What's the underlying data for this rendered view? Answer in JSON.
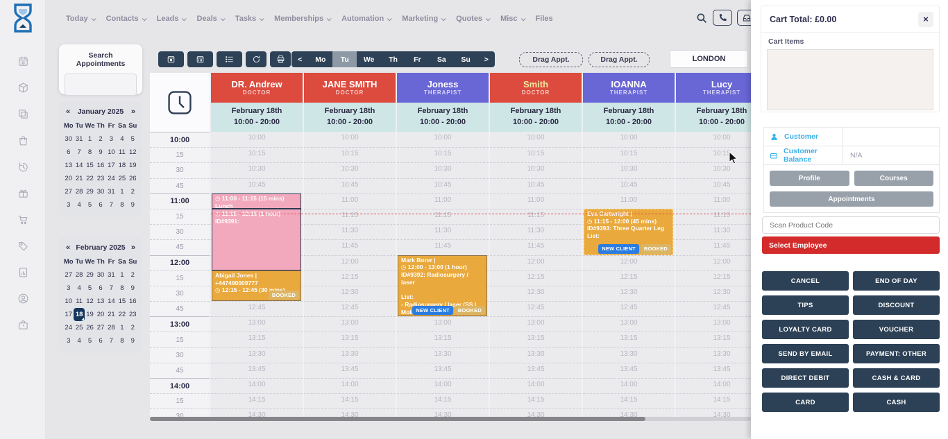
{
  "nav": {
    "items": [
      {
        "label": "Today",
        "dropdown": true
      },
      {
        "label": "Contacts",
        "dropdown": true
      },
      {
        "label": "Leads",
        "dropdown": true
      },
      {
        "label": "Deals",
        "dropdown": true
      },
      {
        "label": "Tasks",
        "dropdown": true
      },
      {
        "label": "Memberships",
        "dropdown": true
      },
      {
        "label": "Automation",
        "dropdown": true
      },
      {
        "label": "Marketing",
        "dropdown": true
      },
      {
        "label": "Quotes",
        "dropdown": true
      },
      {
        "label": "Misc",
        "dropdown": true
      },
      {
        "label": "Files",
        "dropdown": false
      }
    ],
    "right_icons": [
      "search",
      "phone",
      "inbox"
    ]
  },
  "sidebar": {
    "icons": [
      "calendar",
      "package",
      "copy",
      "shopping-bag",
      "history",
      "gift",
      "cart",
      "tag",
      "report",
      "user",
      "briefcase"
    ]
  },
  "left": {
    "search": {
      "label": "Search Appointments",
      "value": ""
    },
    "calendars": [
      {
        "prev": "«",
        "title": "January 2025",
        "next": "»",
        "day_names": [
          "Mo",
          "Tu",
          "We",
          "Th",
          "Fr",
          "Sa",
          "Su"
        ],
        "weeks": [
          [
            30,
            31,
            1,
            2,
            3,
            4,
            5
          ],
          [
            6,
            7,
            8,
            9,
            10,
            11,
            12
          ],
          [
            13,
            14,
            15,
            16,
            17,
            18,
            19
          ],
          [
            20,
            21,
            22,
            23,
            24,
            25,
            26
          ],
          [
            27,
            28,
            29,
            30,
            31,
            1,
            2
          ],
          [
            3,
            4,
            5,
            6,
            7,
            8,
            9
          ]
        ],
        "selected": null
      },
      {
        "prev": "«",
        "title": "February 2025",
        "next": "»",
        "day_names": [
          "Mo",
          "Tu",
          "We",
          "Th",
          "Fr",
          "Sa",
          "Su"
        ],
        "weeks": [
          [
            27,
            28,
            29,
            30,
            31,
            1,
            2
          ],
          [
            3,
            4,
            5,
            6,
            7,
            8,
            9
          ],
          [
            10,
            11,
            12,
            13,
            14,
            15,
            16
          ],
          [
            17,
            18,
            19,
            20,
            21,
            22,
            23
          ],
          [
            24,
            25,
            26,
            27,
            28,
            1,
            2
          ],
          [
            3,
            4,
            5,
            6,
            7,
            8,
            9
          ]
        ],
        "selected": {
          "week": 3,
          "day": 1,
          "value": 18
        }
      }
    ]
  },
  "toolbar": {
    "icon_buttons": [
      "calendar-day",
      "calendar-week",
      "agenda-list",
      "refresh",
      "print"
    ],
    "week_nav": {
      "prev": "<",
      "days": [
        "Mo",
        "Tu",
        "We",
        "Th",
        "Fr",
        "Sa",
        "Su"
      ],
      "active": "Tu",
      "next": ">"
    },
    "drag_buttons": [
      "Drag Appt.",
      "Drag Appt."
    ],
    "location": "LONDON"
  },
  "schedule": {
    "date_line1": "February 18th",
    "date_line2": "10:00 - 20:00",
    "staff": [
      {
        "name": "DR. Andrew",
        "role": "DOCTOR",
        "color": "red"
      },
      {
        "name": "JANE SMITH",
        "role": "DOCTOR",
        "color": "red"
      },
      {
        "name": "Joness",
        "role": "THERAPIST",
        "color": "purple"
      },
      {
        "name": "Smith",
        "role": "DOCTOR",
        "color": "red",
        "name_color": "#f0e9a0"
      },
      {
        "name": "IOANNA",
        "role": "THERAPIST",
        "color": "purple"
      },
      {
        "name": "Lucy",
        "role": "THERAPIST",
        "color": "purple"
      }
    ],
    "times": [
      "10:00",
      "10:15",
      "10:30",
      "10:45",
      "11:00",
      "11:15",
      "11:30",
      "11:45",
      "12:00",
      "12:15",
      "12:30",
      "12:45",
      "13:00",
      "13:15",
      "13:30",
      "13:45",
      "14:00",
      "14:15",
      "14:30"
    ],
    "open_time": "10:00",
    "now_line": "11:20",
    "appointments": [
      {
        "staff": 0,
        "start": "11:00",
        "end": "11:15",
        "color": "pink",
        "lines": [
          "◷ 11:00 - 11:15 (15 mins)",
          "Lunch"
        ],
        "badges": []
      },
      {
        "staff": 0,
        "start": "11:15",
        "end": "12:15",
        "color": "pink",
        "lines": [
          "◷ 11:15 - 12:15 (1 hour)",
          "ID#9391:"
        ],
        "badges": []
      },
      {
        "staff": 0,
        "start": "12:15",
        "end": "12:45",
        "color": "orange",
        "lines": [
          "Abigail Jones |",
          "+447490009777",
          "◷ 12:15 - 12:45 (30 mins)"
        ],
        "badges": [
          "BOOKED"
        ]
      },
      {
        "staff": 2,
        "start": "12:00",
        "end": "13:00",
        "color": "orange",
        "lines": [
          "Mark Borer |",
          "◷ 12:00 - 13:00 (1 hour)",
          "ID#9392: Radiosurgery / laser",
          "",
          "List:",
          "- Radiosurgery / laser (SS | Mole Removal)"
        ],
        "badges": [
          "NEW CLIENT",
          "BOOKED"
        ]
      },
      {
        "staff": 4,
        "start": "11:15",
        "end": "12:00",
        "color": "orange",
        "border": "light",
        "lines": [
          "Eva Cartwright |",
          "◷ 11:15 - 12:00 (45 mins)",
          "ID#9393: Three Quarter Leg",
          "List:"
        ],
        "badges": [
          "NEW CLIENT",
          "BOOKED"
        ]
      }
    ]
  },
  "cart": {
    "title": "Cart Total: £0.00",
    "close": "×",
    "items_label": "Cart Items",
    "customer_label": "Customer",
    "balance_label": "Customer Balance",
    "balance_value": "N/A",
    "profile_btn": "Profile",
    "courses_btn": "Courses",
    "appointments_btn": "Appointments",
    "scan_placeholder": "Scan Product Code",
    "select_employee": "Select Employee",
    "actions": [
      [
        "CANCEL",
        "END OF DAY"
      ],
      [
        "TIPS",
        "DISCOUNT"
      ],
      [
        "LOYALTY CARD",
        "VOUCHER"
      ],
      [
        "SEND BY EMAIL",
        "PAYMENT: OTHER"
      ],
      [
        "DIRECT DEBIT",
        "CASH & CARD"
      ],
      [
        "CARD",
        "CASH"
      ]
    ]
  },
  "colors": {
    "navy": "#2d4156",
    "red_column": "#dc4b3e",
    "purple_column": "#6966d6",
    "teal_header": "#cfe6e7",
    "appt_pink": "#f2a9bd",
    "appt_orange": "#e9a93d",
    "badge_blue": "#2a7ce1",
    "badge_booked": "#dcb564",
    "select_employee_red": "#d32b2b",
    "selected_day": "#14365e",
    "customer_link": "#3db0e8"
  }
}
